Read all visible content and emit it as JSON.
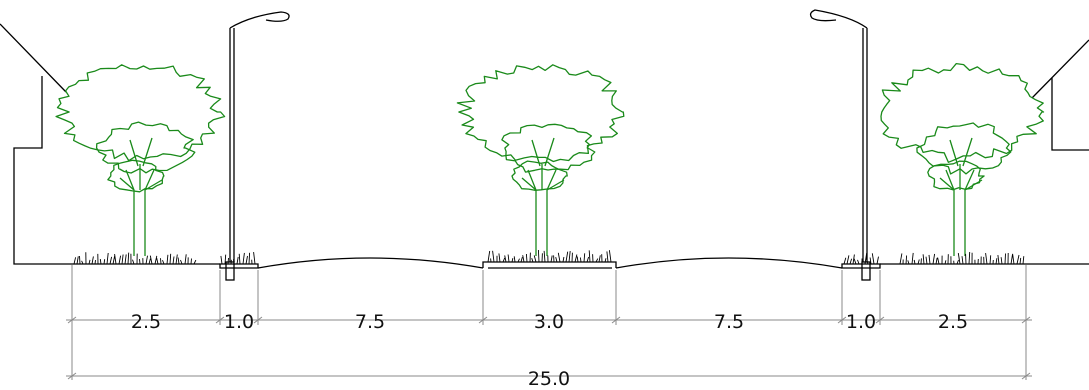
{
  "dimensions": {
    "segments": [
      "2.5",
      "1.0",
      "7.5",
      "3.0",
      "7.5",
      "1.0",
      "2.5"
    ],
    "total": "25.0"
  },
  "colors": {
    "line": "#000000",
    "tree": "#1a8a1a",
    "dimension": "#8a8a8a",
    "background": "#ffffff"
  }
}
